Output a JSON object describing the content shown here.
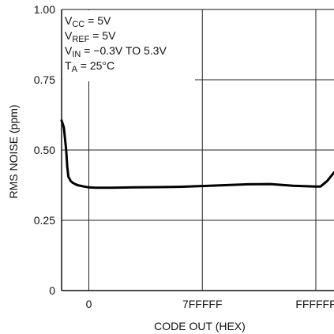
{
  "chart_data": {
    "type": "line",
    "title": "",
    "xlabel": "CODE OUT (HEX)",
    "ylabel": "RMS NOISE (ppm)",
    "ylim": [
      0,
      1.0
    ],
    "xlim": [
      -0.12,
      1.08
    ],
    "y_ticks": [
      "0",
      "0.25",
      "0.50",
      "0.75",
      "1.00"
    ],
    "y_tick_values": [
      0,
      0.25,
      0.5,
      0.75,
      1.0
    ],
    "x_ticks": [
      "0",
      "7FFFFF",
      "FFFFFF"
    ],
    "x_tick_values": [
      0,
      0.5,
      1.0
    ],
    "grid": true,
    "legend": "none",
    "annotations": [
      {
        "parts": [
          {
            "t": "V"
          },
          {
            "t": "CC",
            "sub": true
          },
          {
            "t": " = 5V"
          }
        ]
      },
      {
        "parts": [
          {
            "t": "V"
          },
          {
            "t": "REF",
            "sub": true
          },
          {
            "t": " = 5V"
          }
        ]
      },
      {
        "parts": [
          {
            "t": "V"
          },
          {
            "t": "IN",
            "sub": true
          },
          {
            "t": " = −0.3V TO 5.3V"
          }
        ]
      },
      {
        "parts": [
          {
            "t": "T"
          },
          {
            "t": "A",
            "sub": true
          },
          {
            "t": " = 25°C"
          }
        ]
      }
    ],
    "series": [
      {
        "color": "#000000",
        "x": [
          -0.12,
          -0.11,
          -0.1,
          -0.095,
          -0.09,
          -0.08,
          -0.07,
          -0.05,
          -0.02,
          0.0,
          0.03,
          0.1,
          0.2,
          0.3,
          0.4,
          0.5,
          0.6,
          0.7,
          0.8,
          0.9,
          1.0,
          1.02,
          1.05,
          1.08
        ],
        "y": [
          0.605,
          0.58,
          0.5,
          0.44,
          0.405,
          0.39,
          0.383,
          0.375,
          0.37,
          0.367,
          0.366,
          0.366,
          0.367,
          0.368,
          0.369,
          0.372,
          0.375,
          0.378,
          0.379,
          0.373,
          0.37,
          0.37,
          0.39,
          0.42
        ]
      }
    ]
  }
}
